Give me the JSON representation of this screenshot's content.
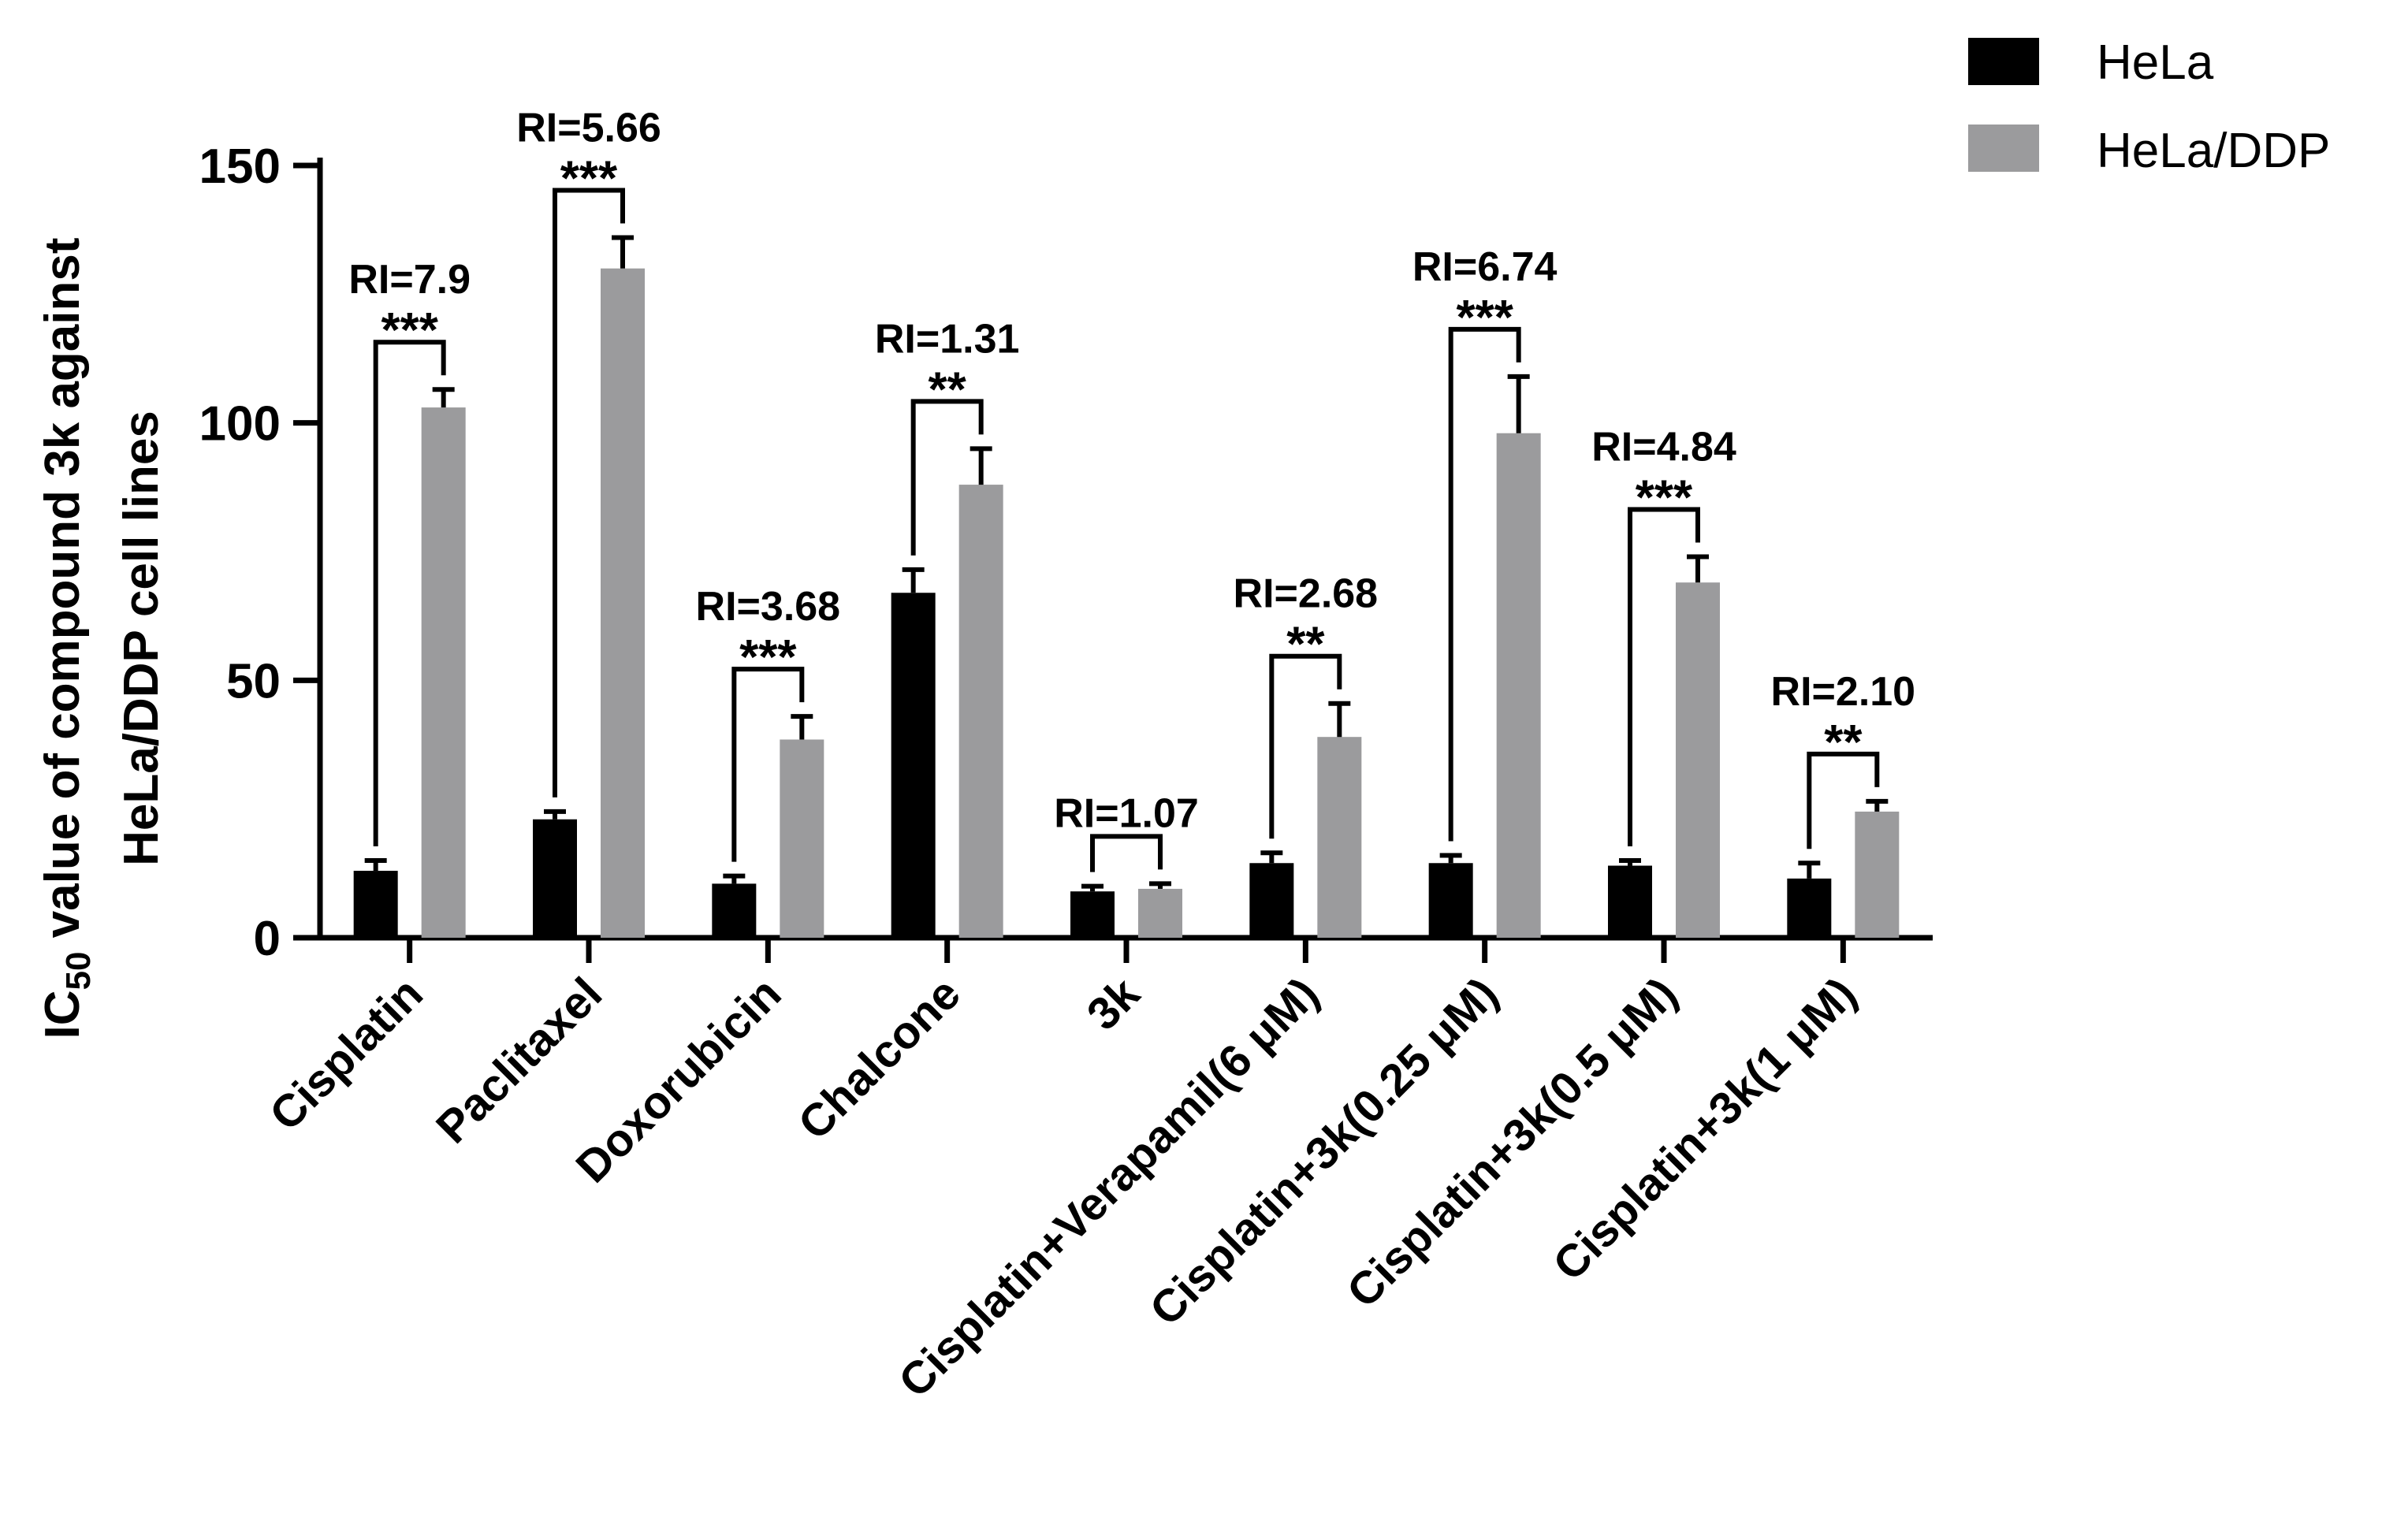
{
  "chart_data": {
    "type": "bar",
    "ylabel_line1_prefix": "IC",
    "ylabel_line1_sub": "50",
    "ylabel_line1_suffix": " value of compound 3k against",
    "ylabel_line2": "HeLa/DDP cell lines",
    "ylim": [
      0,
      150
    ],
    "yticks": [
      0,
      50,
      100,
      150
    ],
    "categories": [
      "Cisplatin",
      "Paclitaxel",
      "Doxorubicin",
      "Chalcone",
      "3k",
      "Cisplatin+Verapamil(6 μM)",
      "Cisplatin+3k(0.25 μM)",
      "Cisplatin+3k(0.5 μM)",
      "Cisplatin+3k(1 μM)"
    ],
    "series": [
      {
        "name": "HeLa",
        "color": "#000000",
        "values": [
          13,
          23,
          10.5,
          67,
          9,
          14.5,
          14.5,
          14,
          11.5
        ],
        "errors": [
          2,
          1.5,
          1.5,
          4.5,
          1,
          2,
          1.5,
          1,
          3
        ]
      },
      {
        "name": "HeLa/DDP",
        "color": "#9b9b9d",
        "values": [
          103,
          130,
          38.5,
          88,
          9.5,
          39,
          98,
          69,
          24.5
        ],
        "errors": [
          3.5,
          6,
          4.5,
          7,
          1,
          6.5,
          11,
          5,
          2
        ]
      }
    ],
    "annotations": [
      {
        "ri": "RI=7.9",
        "stars": "***"
      },
      {
        "ri": "RI=5.66",
        "stars": "***"
      },
      {
        "ri": "RI=3.68",
        "stars": "***"
      },
      {
        "ri": "RI=1.31",
        "stars": "**"
      },
      {
        "ri": "RI=1.07",
        "stars": ""
      },
      {
        "ri": "RI=2.68",
        "stars": "**"
      },
      {
        "ri": "RI=6.74",
        "stars": "***"
      },
      {
        "ri": "RI=4.84",
        "stars": "***"
      },
      {
        "ri": "RI=2.10",
        "stars": "**"
      }
    ],
    "legend_position": "top-right"
  }
}
